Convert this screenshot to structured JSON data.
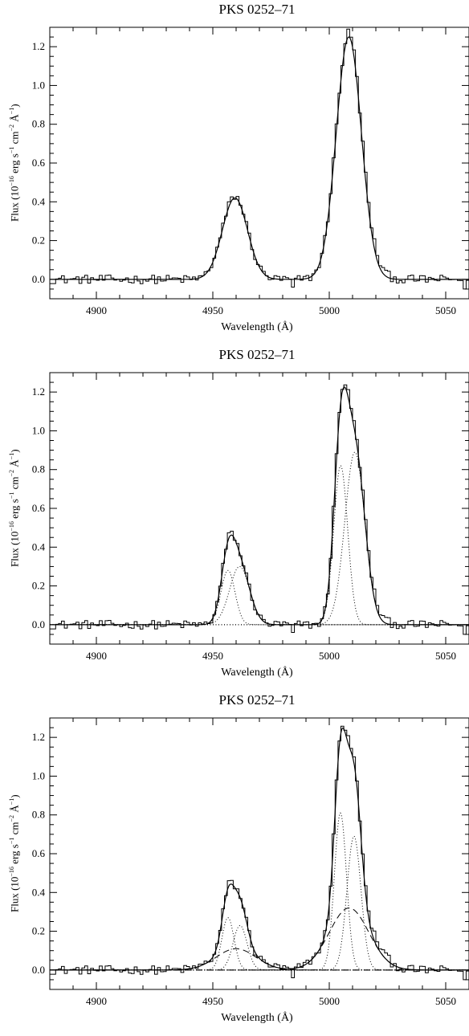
{
  "chart_data": [
    {
      "type": "line",
      "title": "PKS 0252–71",
      "xlabel": "Wavelength (Å)",
      "ylabel": {
        "pre": "Flux (10",
        "exp1": "−16",
        "mid1": " erg s",
        "exp2": "−1",
        "mid2": " cm",
        "exp3": "−2",
        "mid3": " Å",
        "exp4": "−1",
        "post": ")"
      },
      "xlim": [
        4880,
        5060
      ],
      "ylim": [
        -0.1,
        1.3
      ],
      "xticks": [
        "4900",
        "4950",
        "5000",
        "5050"
      ],
      "yticks": [
        "0.0",
        "0.2",
        "0.4",
        "0.6",
        "0.8",
        "1.0",
        "1.2"
      ],
      "series": [
        {
          "style": "histogram",
          "data": "observed"
        },
        {
          "style": "solid",
          "components": [
            {
              "center": 4959.5,
              "sigma": 5.4,
              "amp": 0.42
            },
            {
              "center": 5008.4,
              "sigma": 5.4,
              "amp": 1.25
            }
          ]
        }
      ]
    },
    {
      "type": "line",
      "title": "PKS 0252–71",
      "xlabel": "Wavelength (Å)",
      "ylabel": {
        "pre": "Flux (10",
        "exp1": "−16",
        "mid1": " erg s",
        "exp2": "−1",
        "mid2": " cm",
        "exp3": "−2",
        "mid3": " Å",
        "exp4": "−1",
        "post": ")"
      },
      "xlim": [
        4880,
        5060
      ],
      "ylim": [
        -0.1,
        1.3
      ],
      "xticks": [
        "4900",
        "4950",
        "5000",
        "5050"
      ],
      "yticks": [
        "0.0",
        "0.2",
        "0.4",
        "0.6",
        "0.8",
        "1.0",
        "1.2"
      ],
      "series": [
        {
          "style": "histogram",
          "data": "observed"
        },
        {
          "style": "solid",
          "components": [
            {
              "center": 4956.5,
              "sigma": 3.0,
              "amp": 0.28
            },
            {
              "center": 4961.5,
              "sigma": 4.3,
              "amp": 0.3
            },
            {
              "center": 5004.9,
              "sigma": 3.0,
              "amp": 0.82
            },
            {
              "center": 5011.0,
              "sigma": 4.3,
              "amp": 0.89
            }
          ]
        },
        {
          "style": "dotted",
          "components": [
            {
              "center": 4956.5,
              "sigma": 3.0,
              "amp": 0.28
            }
          ]
        },
        {
          "style": "dotted",
          "components": [
            {
              "center": 4961.5,
              "sigma": 4.3,
              "amp": 0.3
            }
          ]
        },
        {
          "style": "dotted",
          "components": [
            {
              "center": 5004.9,
              "sigma": 3.0,
              "amp": 0.82
            }
          ]
        },
        {
          "style": "dotted",
          "components": [
            {
              "center": 5011.0,
              "sigma": 4.3,
              "amp": 0.89
            }
          ]
        },
        {
          "style": "dotted",
          "components": []
        }
      ]
    },
    {
      "type": "line",
      "title": "PKS 0252–71",
      "xlabel": "Wavelength (Å)",
      "ylabel": {
        "pre": "Flux (10",
        "exp1": "−16",
        "mid1": " erg s",
        "exp2": "−1",
        "mid2": " cm",
        "exp3": "−2",
        "mid3": " Å",
        "exp4": "−1",
        "post": ")"
      },
      "xlim": [
        4880,
        5060
      ],
      "ylim": [
        -0.1,
        1.3
      ],
      "xticks": [
        "4900",
        "4950",
        "5000",
        "5050"
      ],
      "yticks": [
        "0.0",
        "0.2",
        "0.4",
        "0.6",
        "0.8",
        "1.0",
        "1.2"
      ],
      "series": [
        {
          "style": "histogram",
          "data": "observed"
        },
        {
          "style": "solid",
          "components": [
            {
              "center": 4956.5,
              "sigma": 2.6,
              "amp": 0.27
            },
            {
              "center": 4961.7,
              "sigma": 3.0,
              "amp": 0.23
            },
            {
              "center": 5004.8,
              "sigma": 2.6,
              "amp": 0.81
            },
            {
              "center": 5010.6,
              "sigma": 3.0,
              "amp": 0.69
            },
            {
              "center": 4960.0,
              "sigma": 8.5,
              "amp": 0.11
            },
            {
              "center": 5008.5,
              "sigma": 8.5,
              "amp": 0.32
            }
          ]
        },
        {
          "style": "dotted",
          "components": [
            {
              "center": 4956.5,
              "sigma": 2.6,
              "amp": 0.27
            }
          ]
        },
        {
          "style": "dotted",
          "components": [
            {
              "center": 4961.7,
              "sigma": 3.0,
              "amp": 0.23
            }
          ]
        },
        {
          "style": "dotted",
          "components": [
            {
              "center": 5004.8,
              "sigma": 2.6,
              "amp": 0.81
            }
          ]
        },
        {
          "style": "dotted",
          "components": [
            {
              "center": 5010.6,
              "sigma": 3.0,
              "amp": 0.69
            }
          ]
        },
        {
          "style": "dashed",
          "components": [
            {
              "center": 4960.0,
              "sigma": 8.5,
              "amp": 0.11
            }
          ]
        },
        {
          "style": "dashed",
          "components": [
            {
              "center": 5008.5,
              "sigma": 8.5,
              "amp": 0.32
            }
          ]
        },
        {
          "style": "dashdot",
          "components": []
        }
      ]
    }
  ]
}
